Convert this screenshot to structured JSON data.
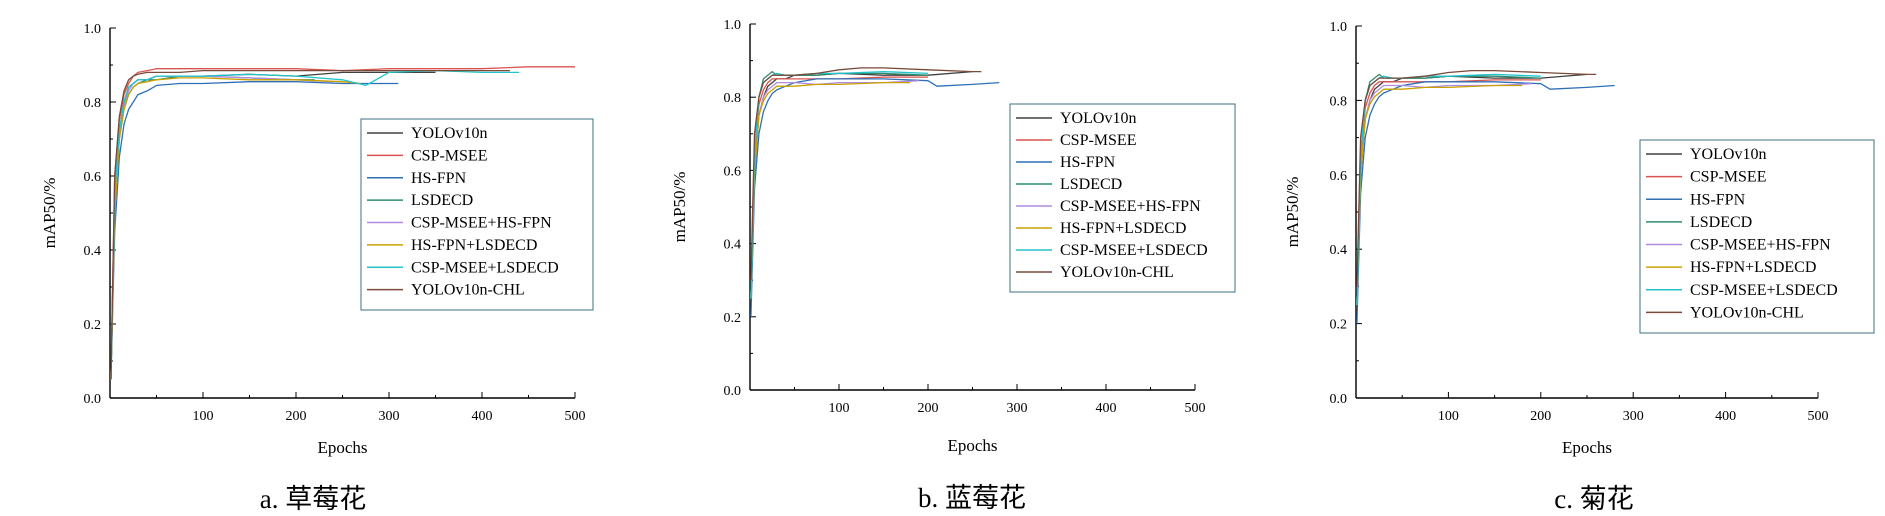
{
  "colors": {
    "YOLOv10n": "#404040",
    "CSP-MSEE": "#d9534f",
    "HS-FPN": "#2e6fb8",
    "LSDECD": "#2e8b6e",
    "CSP-MSEE+HS-FPN": "#b08ce0",
    "HS-FPN+LSDECD": "#c8a000",
    "CSP-MSEE+LSDECD": "#22c4cc",
    "YOLOv10n-CHL": "#7a4a3a"
  },
  "chart_data": [
    {
      "type": "line",
      "caption": "a. 草莓花",
      "xlabel": "Epochs",
      "ylabel": "mAP50/%",
      "xlim": [
        0,
        500
      ],
      "ylim": [
        0.0,
        1.0
      ],
      "xticks": [
        100,
        200,
        300,
        400,
        500
      ],
      "yticks": [
        "0.0",
        "0.2",
        "0.4",
        "0.6",
        "0.8",
        "1.0"
      ],
      "legend_position": "center-right",
      "legend": [
        "YOLOv10n",
        "CSP-MSEE",
        "HS-FPN",
        "LSDECD",
        "CSP-MSEE+HS-FPN",
        "HS-FPN+LSDECD",
        "CSP-MSEE+LSDECD",
        "YOLOv10n-CHL"
      ],
      "series": [
        {
          "name": "YOLOv10n",
          "x": [
            1,
            5,
            10,
            15,
            20,
            25,
            30,
            40,
            50,
            75,
            100,
            150,
            200,
            250,
            300,
            350
          ],
          "y": [
            0.05,
            0.55,
            0.72,
            0.8,
            0.84,
            0.85,
            0.86,
            0.86,
            0.87,
            0.87,
            0.87,
            0.875,
            0.87,
            0.88,
            0.88,
            0.88
          ]
        },
        {
          "name": "CSP-MSEE",
          "x": [
            1,
            5,
            10,
            15,
            20,
            25,
            30,
            40,
            50,
            75,
            100,
            150,
            200,
            250,
            300,
            350,
            400,
            450,
            500
          ],
          "y": [
            0.05,
            0.6,
            0.75,
            0.82,
            0.85,
            0.87,
            0.88,
            0.885,
            0.89,
            0.89,
            0.89,
            0.89,
            0.89,
            0.885,
            0.89,
            0.89,
            0.89,
            0.895,
            0.895
          ]
        },
        {
          "name": "HS-FPN",
          "x": [
            1,
            5,
            10,
            15,
            20,
            25,
            30,
            40,
            50,
            75,
            100,
            150,
            200,
            250,
            300,
            310
          ],
          "y": [
            0.05,
            0.45,
            0.65,
            0.74,
            0.78,
            0.8,
            0.82,
            0.83,
            0.845,
            0.85,
            0.85,
            0.855,
            0.855,
            0.85,
            0.85,
            0.85
          ]
        },
        {
          "name": "LSDECD",
          "x": [
            1,
            5,
            10,
            15,
            20,
            25,
            30,
            40,
            50,
            75,
            100,
            150,
            200,
            220
          ],
          "y": [
            0.05,
            0.5,
            0.7,
            0.78,
            0.82,
            0.84,
            0.85,
            0.86,
            0.86,
            0.87,
            0.87,
            0.865,
            0.86,
            0.86
          ]
        },
        {
          "name": "CSP-MSEE+HS-FPN",
          "x": [
            1,
            5,
            10,
            15,
            20,
            25,
            30,
            40,
            50,
            75,
            100,
            150,
            200,
            240
          ],
          "y": [
            0.05,
            0.5,
            0.7,
            0.79,
            0.83,
            0.85,
            0.86,
            0.86,
            0.87,
            0.87,
            0.87,
            0.865,
            0.86,
            0.855
          ]
        },
        {
          "name": "HS-FPN+LSDECD",
          "x": [
            1,
            5,
            10,
            15,
            20,
            25,
            30,
            40,
            50,
            75,
            100,
            150,
            200,
            250,
            270
          ],
          "y": [
            0.05,
            0.5,
            0.7,
            0.78,
            0.82,
            0.84,
            0.85,
            0.855,
            0.86,
            0.865,
            0.865,
            0.86,
            0.86,
            0.855,
            0.85
          ]
        },
        {
          "name": "CSP-MSEE+LSDECD",
          "x": [
            1,
            5,
            10,
            15,
            20,
            25,
            30,
            40,
            50,
            75,
            100,
            150,
            200,
            250,
            275,
            300,
            350,
            400,
            440
          ],
          "y": [
            0.05,
            0.55,
            0.72,
            0.8,
            0.84,
            0.85,
            0.86,
            0.86,
            0.87,
            0.87,
            0.87,
            0.875,
            0.87,
            0.86,
            0.845,
            0.88,
            0.885,
            0.88,
            0.88
          ]
        },
        {
          "name": "YOLOv10n-CHL",
          "x": [
            1,
            5,
            10,
            15,
            20,
            25,
            30,
            40,
            50,
            75,
            100,
            150,
            200,
            250,
            300,
            350,
            400,
            430
          ],
          "y": [
            0.05,
            0.6,
            0.76,
            0.83,
            0.86,
            0.87,
            0.875,
            0.88,
            0.88,
            0.88,
            0.885,
            0.885,
            0.885,
            0.885,
            0.885,
            0.885,
            0.885,
            0.885
          ]
        }
      ]
    },
    {
      "type": "line",
      "caption": "b. 蓝莓花",
      "xlabel": "Epochs",
      "ylabel": "mAP50/%",
      "xlim": [
        0,
        500
      ],
      "ylim": [
        0.0,
        1.0
      ],
      "xticks": [
        100,
        200,
        300,
        400,
        500
      ],
      "yticks": [
        "0.0",
        "0.2",
        "0.4",
        "0.6",
        "0.8",
        "1.0"
      ],
      "legend_position": "top-right",
      "legend": [
        "YOLOv10n",
        "CSP-MSEE",
        "HS-FPN",
        "LSDECD",
        "CSP-MSEE+HS-FPN",
        "HS-FPN+LSDECD",
        "CSP-MSEE+LSDECD",
        "YOLOv10n-CHL"
      ],
      "series": [
        {
          "name": "YOLOv10n",
          "x": [
            1,
            5,
            10,
            15,
            20,
            25,
            30,
            40,
            50,
            75,
            100,
            150,
            200,
            250
          ],
          "y": [
            0.25,
            0.6,
            0.75,
            0.8,
            0.83,
            0.84,
            0.85,
            0.85,
            0.86,
            0.86,
            0.865,
            0.86,
            0.86,
            0.87
          ]
        },
        {
          "name": "CSP-MSEE",
          "x": [
            1,
            5,
            10,
            15,
            20,
            25,
            30,
            40,
            50,
            75,
            100,
            150,
            200
          ],
          "y": [
            0.25,
            0.65,
            0.78,
            0.82,
            0.84,
            0.85,
            0.85,
            0.85,
            0.85,
            0.85,
            0.85,
            0.855,
            0.855
          ]
        },
        {
          "name": "HS-FPN",
          "x": [
            1,
            5,
            10,
            15,
            20,
            25,
            30,
            40,
            50,
            75,
            100,
            150,
            200,
            210,
            250,
            280
          ],
          "y": [
            0.2,
            0.55,
            0.7,
            0.76,
            0.79,
            0.81,
            0.82,
            0.83,
            0.84,
            0.85,
            0.85,
            0.85,
            0.845,
            0.83,
            0.835,
            0.84
          ]
        },
        {
          "name": "LSDECD",
          "x": [
            1,
            5,
            10,
            15,
            20,
            25,
            30,
            40,
            50,
            75,
            100,
            150,
            200
          ],
          "y": [
            0.25,
            0.65,
            0.8,
            0.85,
            0.86,
            0.87,
            0.86,
            0.86,
            0.86,
            0.86,
            0.865,
            0.865,
            0.86
          ]
        },
        {
          "name": "CSP-MSEE+HS-FPN",
          "x": [
            1,
            5,
            10,
            15,
            20,
            25,
            30,
            40,
            50,
            75,
            100,
            150,
            190
          ],
          "y": [
            0.25,
            0.6,
            0.75,
            0.8,
            0.82,
            0.83,
            0.84,
            0.84,
            0.84,
            0.835,
            0.84,
            0.84,
            0.845
          ]
        },
        {
          "name": "HS-FPN+LSDECD",
          "x": [
            1,
            5,
            10,
            15,
            20,
            25,
            30,
            40,
            50,
            75,
            100,
            150,
            180
          ],
          "y": [
            0.25,
            0.6,
            0.75,
            0.79,
            0.81,
            0.82,
            0.83,
            0.83,
            0.83,
            0.835,
            0.835,
            0.84,
            0.84
          ]
        },
        {
          "name": "CSP-MSEE+LSDECD",
          "x": [
            1,
            5,
            10,
            15,
            20,
            25,
            30,
            40,
            50,
            75,
            100,
            150,
            200
          ],
          "y": [
            0.25,
            0.65,
            0.8,
            0.84,
            0.85,
            0.86,
            0.865,
            0.86,
            0.86,
            0.865,
            0.865,
            0.87,
            0.865
          ]
        },
        {
          "name": "YOLOv10n-CHL",
          "x": [
            1,
            5,
            10,
            15,
            20,
            25,
            30,
            40,
            50,
            75,
            100,
            125,
            150,
            200,
            250,
            260
          ],
          "y": [
            0.3,
            0.7,
            0.8,
            0.84,
            0.85,
            0.86,
            0.86,
            0.86,
            0.86,
            0.865,
            0.875,
            0.88,
            0.88,
            0.875,
            0.87,
            0.87
          ]
        }
      ]
    },
    {
      "type": "line",
      "caption": "c. 菊花",
      "xlabel": "Epochs",
      "ylabel": "mAP50/%",
      "xlim": [
        0,
        500
      ],
      "ylim": [
        0.0,
        1.0
      ],
      "xticks": [
        100,
        200,
        300,
        400,
        500
      ],
      "yticks": [
        "0.0",
        "0.2",
        "0.4",
        "0.6",
        "0.8",
        "1.0"
      ],
      "legend_position": "center-right",
      "legend": [
        "YOLOv10n",
        "CSP-MSEE",
        "HS-FPN",
        "LSDECD",
        "CSP-MSEE+HS-FPN",
        "HS-FPN+LSDECD",
        "CSP-MSEE+LSDECD",
        "YOLOv10n-CHL"
      ],
      "series": [
        {
          "name": "YOLOv10n",
          "x": [
            1,
            5,
            10,
            15,
            20,
            25,
            30,
            40,
            50,
            75,
            100,
            150,
            200,
            250
          ],
          "y": [
            0.25,
            0.6,
            0.75,
            0.8,
            0.83,
            0.84,
            0.85,
            0.85,
            0.86,
            0.86,
            0.865,
            0.86,
            0.86,
            0.87
          ]
        },
        {
          "name": "CSP-MSEE",
          "x": [
            1,
            5,
            10,
            15,
            20,
            25,
            30,
            40,
            50,
            75,
            100,
            150,
            200
          ],
          "y": [
            0.25,
            0.65,
            0.78,
            0.82,
            0.84,
            0.85,
            0.85,
            0.85,
            0.85,
            0.85,
            0.85,
            0.855,
            0.855
          ]
        },
        {
          "name": "HS-FPN",
          "x": [
            1,
            5,
            10,
            15,
            20,
            25,
            30,
            40,
            50,
            75,
            100,
            150,
            200,
            210,
            250,
            280
          ],
          "y": [
            0.2,
            0.55,
            0.7,
            0.76,
            0.79,
            0.81,
            0.82,
            0.83,
            0.84,
            0.85,
            0.85,
            0.85,
            0.845,
            0.83,
            0.835,
            0.84
          ]
        },
        {
          "name": "LSDECD",
          "x": [
            1,
            5,
            10,
            15,
            20,
            25,
            30,
            40,
            50,
            75,
            100,
            150,
            200
          ],
          "y": [
            0.25,
            0.65,
            0.8,
            0.85,
            0.86,
            0.87,
            0.86,
            0.86,
            0.86,
            0.86,
            0.865,
            0.865,
            0.86
          ]
        },
        {
          "name": "CSP-MSEE+HS-FPN",
          "x": [
            1,
            5,
            10,
            15,
            20,
            25,
            30,
            40,
            50,
            75,
            100,
            150,
            190
          ],
          "y": [
            0.25,
            0.6,
            0.75,
            0.8,
            0.82,
            0.83,
            0.84,
            0.84,
            0.84,
            0.835,
            0.84,
            0.84,
            0.845
          ]
        },
        {
          "name": "HS-FPN+LSDECD",
          "x": [
            1,
            5,
            10,
            15,
            20,
            25,
            30,
            40,
            50,
            75,
            100,
            150,
            180
          ],
          "y": [
            0.25,
            0.6,
            0.75,
            0.79,
            0.81,
            0.82,
            0.83,
            0.83,
            0.83,
            0.835,
            0.835,
            0.84,
            0.84
          ]
        },
        {
          "name": "CSP-MSEE+LSDECD",
          "x": [
            1,
            5,
            10,
            15,
            20,
            25,
            30,
            40,
            50,
            75,
            100,
            150,
            200
          ],
          "y": [
            0.25,
            0.65,
            0.8,
            0.84,
            0.85,
            0.86,
            0.865,
            0.86,
            0.86,
            0.865,
            0.865,
            0.87,
            0.865
          ]
        },
        {
          "name": "YOLOv10n-CHL",
          "x": [
            1,
            5,
            10,
            15,
            20,
            25,
            30,
            40,
            50,
            75,
            100,
            125,
            150,
            200,
            250,
            260
          ],
          "y": [
            0.3,
            0.7,
            0.8,
            0.84,
            0.85,
            0.86,
            0.86,
            0.86,
            0.86,
            0.865,
            0.875,
            0.88,
            0.88,
            0.875,
            0.87,
            0.87
          ]
        }
      ]
    }
  ]
}
